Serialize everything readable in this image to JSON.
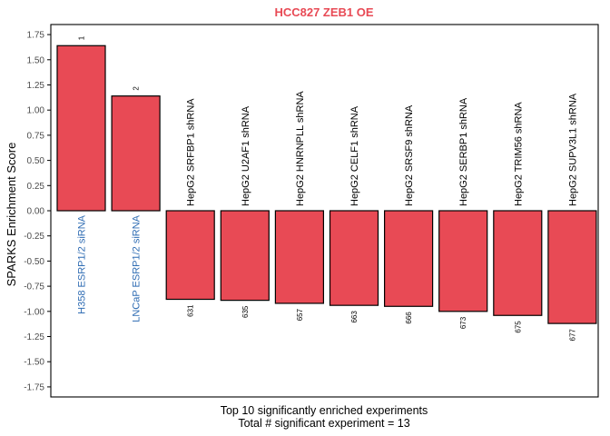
{
  "chart_data": {
    "type": "bar",
    "title": "HCC827 ZEB1 OE",
    "ylabel": "SPARKS Enrichment Score",
    "xlabel_line1": "Top 10 significantly enriched experiments",
    "xlabel_line2": "Total # significant experiment = 13",
    "ylim": [
      -1.85,
      1.85
    ],
    "yticks": [
      1.75,
      1.5,
      1.25,
      1.0,
      0.75,
      0.5,
      0.25,
      0.0,
      -0.25,
      -0.5,
      -0.75,
      -1.0,
      -1.25,
      -1.5,
      -1.75
    ],
    "grid": false,
    "categories": [
      "H358 ESRP1/2 siRNA",
      "LNCaP ESRP1/2 siRNA",
      "HepG2 SRFBP1 shRNA",
      "HepG2 U2AF1 shRNA",
      "HepG2 HNRNPLL shRNA",
      "HepG2 CELF1 shRNA",
      "HepG2 SRSF9 shRNA",
      "HepG2 SERBP1 shRNA",
      "HepG2 TRIM56 shRNA",
      "HepG2 SUPV3L1 shRNA"
    ],
    "values": [
      1.64,
      1.14,
      -0.88,
      -0.89,
      -0.92,
      -0.94,
      -0.95,
      -1.0,
      -1.04,
      -1.12
    ],
    "ranks": [
      "1",
      "2",
      "631",
      "635",
      "657",
      "663",
      "666",
      "673",
      "675",
      "677"
    ],
    "highlighted": [
      true,
      true,
      false,
      false,
      false,
      false,
      false,
      false,
      false,
      false
    ]
  },
  "colors": {
    "bar_fill": "#E84A55",
    "bar_stroke": "#000000",
    "title": "#E84A55",
    "highlight_label": "#2F6CB3",
    "normal_label": "#000000",
    "axis": "#000000",
    "tick_label": "#4D4D4D"
  }
}
